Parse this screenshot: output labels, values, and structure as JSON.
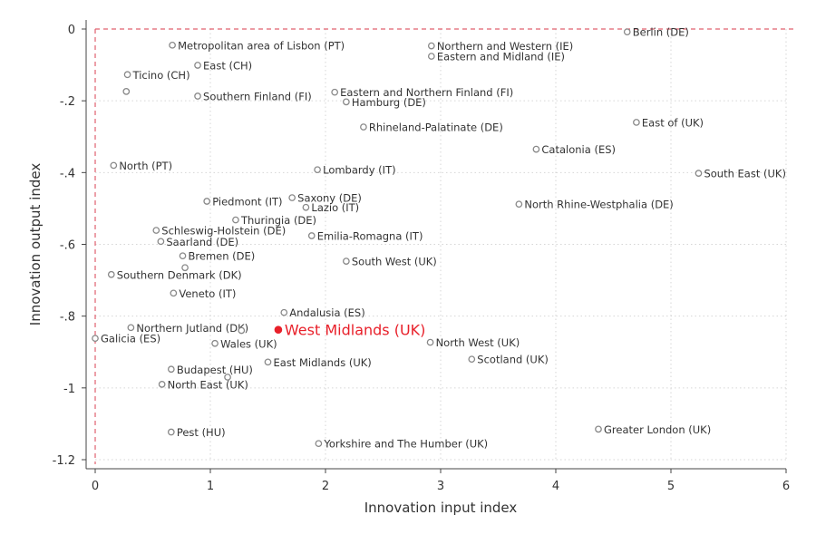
{
  "chart_data": {
    "type": "scatter",
    "xlabel": "Innovation input index",
    "ylabel": "Innovation output index",
    "xlim": [
      0,
      6
    ],
    "ylim": [
      -1.2,
      0
    ],
    "xticks": [
      0,
      1,
      2,
      3,
      4,
      5,
      6
    ],
    "yticks": [
      0,
      -0.2,
      -0.4,
      -0.6,
      -0.8,
      -1,
      -1.2
    ],
    "ytick_labels": [
      "0",
      "-.2",
      "-.4",
      "-.6",
      "-.8",
      "-1",
      "-1.2"
    ],
    "grid": true,
    "reference_lines": {
      "x": 0,
      "y": 0,
      "color": "#e0606e"
    },
    "colors": {
      "point": "#888888",
      "highlight": "#e8202a"
    },
    "points": [
      {
        "label": "Berlin (DE)",
        "x": 4.62,
        "y": -0.008
      },
      {
        "label": "Metropolitan area of Lisbon (PT)",
        "x": 0.67,
        "y": -0.045
      },
      {
        "label": "Northern and Western (IE)",
        "x": 2.92,
        "y": -0.047
      },
      {
        "label": "Eastern and Midland (IE)",
        "x": 2.92,
        "y": -0.076
      },
      {
        "label": "East (CH)",
        "x": 0.89,
        "y": -0.101
      },
      {
        "label": "Ticino (CH)",
        "x": 0.28,
        "y": -0.127
      },
      {
        "label": "",
        "x": 0.27,
        "y": -0.174
      },
      {
        "label": "Southern Finland (FI)",
        "x": 0.89,
        "y": -0.187
      },
      {
        "label": "Eastern and Northern Finland (FI)",
        "x": 2.08,
        "y": -0.176
      },
      {
        "label": "Hamburg (DE)",
        "x": 2.18,
        "y": -0.203
      },
      {
        "label": "East of (UK)",
        "x": 4.7,
        "y": -0.26
      },
      {
        "label": "Rhineland-Palatinate (DE)",
        "x": 2.33,
        "y": -0.273
      },
      {
        "label": "Catalonia (ES)",
        "x": 3.83,
        "y": -0.335
      },
      {
        "label": "North (PT)",
        "x": 0.16,
        "y": -0.38
      },
      {
        "label": "Lombardy (IT)",
        "x": 1.93,
        "y": -0.392
      },
      {
        "label": "South East (UK)",
        "x": 5.24,
        "y": -0.402
      },
      {
        "label": "Piedmont (IT)",
        "x": 0.97,
        "y": -0.48
      },
      {
        "label": "Saxony (DE)",
        "x": 1.71,
        "y": -0.47
      },
      {
        "label": "Lazio (IT)",
        "x": 1.83,
        "y": -0.497
      },
      {
        "label": "North Rhine-Westphalia (DE)",
        "x": 3.68,
        "y": -0.488
      },
      {
        "label": "Thuringia (DE)",
        "x": 1.22,
        "y": -0.532
      },
      {
        "label": "Schleswig-Holstein (DE)",
        "x": 0.53,
        "y": -0.561
      },
      {
        "label": "Emilia-Romagna (IT)",
        "x": 1.88,
        "y": -0.576
      },
      {
        "label": "Saarland (DE)",
        "x": 0.57,
        "y": -0.592
      },
      {
        "label": "Bremen (DE)",
        "x": 0.76,
        "y": -0.632
      },
      {
        "label": "",
        "x": 0.78,
        "y": -0.665
      },
      {
        "label": "South West (UK)",
        "x": 2.18,
        "y": -0.647
      },
      {
        "label": "Southern Denmark (DK)",
        "x": 0.14,
        "y": -0.684
      },
      {
        "label": "Veneto (IT)",
        "x": 0.68,
        "y": -0.736
      },
      {
        "label": "Andalusia (ES)",
        "x": 1.64,
        "y": -0.79
      },
      {
        "label": "Northern Jutland (DK)",
        "x": 0.31,
        "y": -0.832
      },
      {
        "label": "",
        "x": 1.27,
        "y": -0.84
      },
      {
        "label": "West Midlands (UK)",
        "x": 1.59,
        "y": -0.838,
        "highlight": true
      },
      {
        "label": "Galicia (ES)",
        "x": 0.0,
        "y": -0.862
      },
      {
        "label": "Wales (UK)",
        "x": 1.04,
        "y": -0.876
      },
      {
        "label": "North West (UK)",
        "x": 2.91,
        "y": -0.873
      },
      {
        "label": "East Midlands (UK)",
        "x": 1.5,
        "y": -0.928
      },
      {
        "label": "Scotland (UK)",
        "x": 3.27,
        "y": -0.92
      },
      {
        "label": "Budapest (HU)",
        "x": 0.66,
        "y": -0.948
      },
      {
        "label": "",
        "x": 1.15,
        "y": -0.97
      },
      {
        "label": "North East (UK)",
        "x": 0.58,
        "y": -0.99
      },
      {
        "label": "Pest (HU)",
        "x": 0.66,
        "y": -1.123
      },
      {
        "label": "Greater London (UK)",
        "x": 4.37,
        "y": -1.115
      },
      {
        "label": "Yorkshire and The Humber (UK)",
        "x": 1.94,
        "y": -1.155
      }
    ]
  }
}
